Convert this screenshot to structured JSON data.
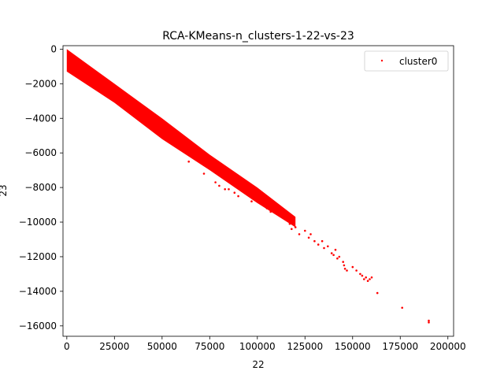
{
  "chart_data": {
    "type": "scatter",
    "title": "RCA-KMeans-n_clusters-1-22-vs-23",
    "xlabel": "22",
    "ylabel": "23",
    "xlim": [
      -2000,
      203000
    ],
    "ylim": [
      -16600,
      200
    ],
    "xticks": [
      0,
      25000,
      50000,
      75000,
      100000,
      125000,
      150000,
      175000,
      200000
    ],
    "yticks": [
      0,
      -2000,
      -4000,
      -6000,
      -8000,
      -10000,
      -12000,
      -14000,
      -16000
    ],
    "grid": false,
    "legend_position": "top-right",
    "colors": {
      "cluster0": "#ff0000"
    },
    "series": [
      {
        "name": "cluster0",
        "marker": "point",
        "band": [
          {
            "x": 0,
            "y_top": 0,
            "y_bottom": -1300
          },
          {
            "x": 25000,
            "y_top": -2000,
            "y_bottom": -3100
          },
          {
            "x": 50000,
            "y_top": -4000,
            "y_bottom": -5200
          },
          {
            "x": 75000,
            "y_top": -6100,
            "y_bottom": -7000
          },
          {
            "x": 100000,
            "y_top": -8000,
            "y_bottom": -8900
          },
          {
            "x": 120000,
            "y_top": -9700,
            "y_bottom": -10300
          }
        ],
        "points": [
          [
            64000,
            -6500
          ],
          [
            72000,
            -7200
          ],
          [
            78000,
            -7700
          ],
          [
            80000,
            -7900
          ],
          [
            83000,
            -8100
          ],
          [
            85000,
            -8100
          ],
          [
            88000,
            -8300
          ],
          [
            90000,
            -8500
          ],
          [
            95000,
            -8300
          ],
          [
            97000,
            -8800
          ],
          [
            100000,
            -8600
          ],
          [
            103000,
            -8900
          ],
          [
            105000,
            -9200
          ],
          [
            107000,
            -9400
          ],
          [
            110000,
            -9300
          ],
          [
            112000,
            -9600
          ],
          [
            115000,
            -9800
          ],
          [
            117000,
            -10100
          ],
          [
            118000,
            -10400
          ],
          [
            120000,
            -10300
          ],
          [
            122000,
            -10700
          ],
          [
            125000,
            -10500
          ],
          [
            127000,
            -10900
          ],
          [
            128000,
            -10700
          ],
          [
            130000,
            -11100
          ],
          [
            132000,
            -11300
          ],
          [
            134000,
            -11100
          ],
          [
            135000,
            -11500
          ],
          [
            137000,
            -11400
          ],
          [
            139000,
            -11800
          ],
          [
            140000,
            -11900
          ],
          [
            141000,
            -11600
          ],
          [
            142000,
            -12100
          ],
          [
            143000,
            -12000
          ],
          [
            145000,
            -12300
          ],
          [
            145500,
            -12500
          ],
          [
            146000,
            -12700
          ],
          [
            147000,
            -12800
          ],
          [
            150000,
            -12600
          ],
          [
            152000,
            -12800
          ],
          [
            154000,
            -13000
          ],
          [
            155000,
            -13100
          ],
          [
            156000,
            -13300
          ],
          [
            157000,
            -13200
          ],
          [
            158000,
            -13400
          ],
          [
            159000,
            -13300
          ],
          [
            160000,
            -13200
          ],
          [
            163000,
            -14100
          ],
          [
            176000,
            -14950
          ],
          [
            190000,
            -15700
          ],
          [
            190000,
            -15800
          ]
        ]
      }
    ]
  }
}
